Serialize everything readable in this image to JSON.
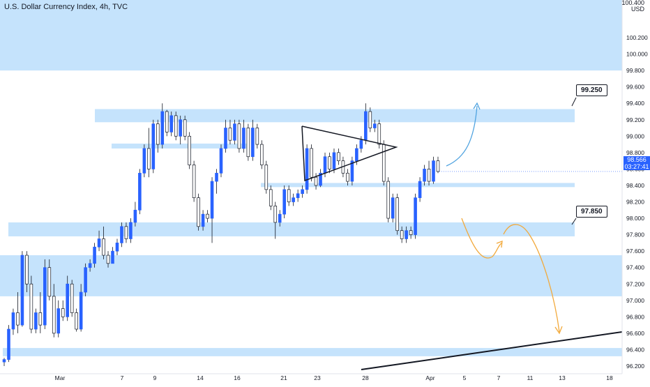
{
  "header": {
    "title": "U.S. Dollar Currency Index, 4h, TVC"
  },
  "price_axis": {
    "unit": "USD",
    "top_label": "100.400",
    "current_price": "98.566",
    "countdown": "03:27:41"
  },
  "callouts": {
    "upper": "99.250",
    "lower": "97.850"
  },
  "colors": {
    "zone": "#bbdefb",
    "up_candle": "#2962ff",
    "down_candle": "#ffffff",
    "arrow_up": "#4fa3e0",
    "arrow_down": "#f2a93b",
    "price_tag": "#2962ff"
  },
  "chart_data": {
    "type": "candlestick",
    "title": "U.S. Dollar Currency Index, 4h, TVC",
    "ylabel": "USD",
    "ylim": [
      96.2,
      100.4
    ],
    "y_ticks": [
      100.2,
      100.0,
      99.8,
      99.6,
      99.4,
      99.2,
      99.0,
      98.8,
      98.6,
      98.4,
      98.2,
      98.0,
      97.8,
      97.6,
      97.4,
      97.2,
      97.0,
      96.8,
      96.6,
      96.4,
      96.2
    ],
    "x_ticks": [
      "Mar",
      "7",
      "9",
      "14",
      "16",
      "21",
      "23",
      "28",
      "Apr",
      "5",
      "7",
      "11",
      "13",
      "18"
    ],
    "zones": [
      {
        "name": "supply-zone-top",
        "from": 99.8,
        "to": 100.4,
        "start": "Mar",
        "end": "right"
      },
      {
        "name": "resistance-99250",
        "from": 99.17,
        "to": 99.33,
        "start": "7",
        "end": "13"
      },
      {
        "name": "mid-98900",
        "from": 98.85,
        "to": 98.91,
        "start": "7",
        "end": "16"
      },
      {
        "name": "pivot-98400",
        "from": 98.38,
        "to": 98.43,
        "start": "21",
        "end": "13"
      },
      {
        "name": "support-97850",
        "from": 97.78,
        "to": 97.95,
        "start": "Mar",
        "end": "13"
      },
      {
        "name": "demand-zone",
        "from": 97.05,
        "to": 97.55,
        "start": "Mar",
        "end": "right"
      },
      {
        "name": "bottom-zone",
        "from": 96.32,
        "to": 96.42,
        "start": "Mar",
        "end": "right"
      }
    ],
    "annotations": [
      "99.250",
      "97.850",
      "symmetrical triangle",
      "bullish projection",
      "bearish projection",
      "rising trendline"
    ],
    "candles": [
      {
        "o": 96.25,
        "h": 96.3,
        "l": 96.2,
        "c": 96.28
      },
      {
        "o": 96.28,
        "h": 96.7,
        "l": 96.25,
        "c": 96.65
      },
      {
        "o": 96.65,
        "h": 96.9,
        "l": 96.58,
        "c": 96.85
      },
      {
        "o": 96.85,
        "h": 97.1,
        "l": 96.6,
        "c": 96.7
      },
      {
        "o": 96.7,
        "h": 97.6,
        "l": 96.68,
        "c": 97.55
      },
      {
        "o": 97.55,
        "h": 97.6,
        "l": 97.1,
        "c": 97.2
      },
      {
        "o": 97.2,
        "h": 97.3,
        "l": 96.6,
        "c": 96.65
      },
      {
        "o": 96.65,
        "h": 96.9,
        "l": 96.6,
        "c": 96.85
      },
      {
        "o": 96.85,
        "h": 97.1,
        "l": 96.6,
        "c": 96.7
      },
      {
        "o": 96.7,
        "h": 97.5,
        "l": 96.65,
        "c": 97.4
      },
      {
        "o": 97.4,
        "h": 97.5,
        "l": 97.0,
        "c": 97.05
      },
      {
        "o": 97.05,
        "h": 97.2,
        "l": 96.55,
        "c": 96.6
      },
      {
        "o": 96.6,
        "h": 97.0,
        "l": 96.55,
        "c": 96.9
      },
      {
        "o": 96.9,
        "h": 97.0,
        "l": 96.75,
        "c": 96.8
      },
      {
        "o": 96.8,
        "h": 97.3,
        "l": 96.75,
        "c": 97.2
      },
      {
        "o": 97.2,
        "h": 97.25,
        "l": 96.8,
        "c": 96.85
      },
      {
        "o": 96.85,
        "h": 96.9,
        "l": 96.62,
        "c": 96.65
      },
      {
        "o": 96.65,
        "h": 97.2,
        "l": 96.62,
        "c": 97.1
      },
      {
        "o": 97.1,
        "h": 97.45,
        "l": 97.05,
        "c": 97.4
      },
      {
        "o": 97.4,
        "h": 97.5,
        "l": 97.35,
        "c": 97.45
      },
      {
        "o": 97.45,
        "h": 97.7,
        "l": 97.4,
        "c": 97.65
      },
      {
        "o": 97.65,
        "h": 97.85,
        "l": 97.6,
        "c": 97.75
      },
      {
        "o": 97.75,
        "h": 97.9,
        "l": 97.5,
        "c": 97.55
      },
      {
        "o": 97.55,
        "h": 97.6,
        "l": 97.4,
        "c": 97.45
      },
      {
        "o": 97.45,
        "h": 97.65,
        "l": 97.45,
        "c": 97.6
      },
      {
        "o": 97.6,
        "h": 97.75,
        "l": 97.55,
        "c": 97.7
      },
      {
        "o": 97.7,
        "h": 97.95,
        "l": 97.65,
        "c": 97.9
      },
      {
        "o": 97.9,
        "h": 97.95,
        "l": 97.7,
        "c": 97.75
      },
      {
        "o": 97.75,
        "h": 98.0,
        "l": 97.7,
        "c": 97.95
      },
      {
        "o": 97.95,
        "h": 98.2,
        "l": 97.9,
        "c": 98.1
      },
      {
        "o": 98.1,
        "h": 98.6,
        "l": 98.05,
        "c": 98.55
      },
      {
        "o": 98.55,
        "h": 98.9,
        "l": 98.5,
        "c": 98.85
      },
      {
        "o": 98.85,
        "h": 99.1,
        "l": 98.5,
        "c": 98.6
      },
      {
        "o": 98.6,
        "h": 99.2,
        "l": 98.55,
        "c": 99.15
      },
      {
        "o": 99.15,
        "h": 99.2,
        "l": 98.8,
        "c": 98.9
      },
      {
        "o": 98.9,
        "h": 99.4,
        "l": 98.85,
        "c": 99.3
      },
      {
        "o": 99.3,
        "h": 99.32,
        "l": 99.0,
        "c": 99.05
      },
      {
        "o": 99.05,
        "h": 99.3,
        "l": 99.0,
        "c": 99.25
      },
      {
        "o": 99.25,
        "h": 99.3,
        "l": 98.95,
        "c": 99.0
      },
      {
        "o": 99.0,
        "h": 99.25,
        "l": 98.9,
        "c": 99.2
      },
      {
        "o": 99.2,
        "h": 99.25,
        "l": 98.95,
        "c": 99.0
      },
      {
        "o": 99.0,
        "h": 99.05,
        "l": 98.6,
        "c": 98.65
      },
      {
        "o": 98.65,
        "h": 98.7,
        "l": 98.2,
        "c": 98.25
      },
      {
        "o": 98.25,
        "h": 98.3,
        "l": 97.85,
        "c": 97.9
      },
      {
        "o": 97.9,
        "h": 98.1,
        "l": 97.85,
        "c": 98.05
      },
      {
        "o": 98.05,
        "h": 98.1,
        "l": 97.95,
        "c": 98.0
      },
      {
        "o": 98.0,
        "h": 98.5,
        "l": 97.7,
        "c": 98.45
      },
      {
        "o": 98.45,
        "h": 98.6,
        "l": 98.3,
        "c": 98.55
      },
      {
        "o": 98.55,
        "h": 98.9,
        "l": 98.5,
        "c": 98.85
      },
      {
        "o": 98.85,
        "h": 99.2,
        "l": 98.8,
        "c": 99.1
      },
      {
        "o": 99.1,
        "h": 99.2,
        "l": 98.9,
        "c": 98.95
      },
      {
        "o": 98.95,
        "h": 99.2,
        "l": 98.9,
        "c": 99.15
      },
      {
        "o": 99.15,
        "h": 99.2,
        "l": 98.8,
        "c": 98.85
      },
      {
        "o": 98.85,
        "h": 99.2,
        "l": 98.8,
        "c": 99.1
      },
      {
        "o": 99.1,
        "h": 99.15,
        "l": 98.7,
        "c": 98.75
      },
      {
        "o": 98.75,
        "h": 99.2,
        "l": 98.7,
        "c": 99.1
      },
      {
        "o": 99.1,
        "h": 99.15,
        "l": 98.85,
        "c": 98.9
      },
      {
        "o": 98.9,
        "h": 98.95,
        "l": 98.6,
        "c": 98.65
      },
      {
        "o": 98.65,
        "h": 98.7,
        "l": 98.3,
        "c": 98.35
      },
      {
        "o": 98.35,
        "h": 98.4,
        "l": 98.1,
        "c": 98.15
      },
      {
        "o": 98.15,
        "h": 98.2,
        "l": 97.75,
        "c": 97.95
      },
      {
        "o": 97.95,
        "h": 98.1,
        "l": 97.9,
        "c": 98.05
      },
      {
        "o": 98.05,
        "h": 98.4,
        "l": 98.0,
        "c": 98.35
      },
      {
        "o": 98.35,
        "h": 98.4,
        "l": 98.15,
        "c": 98.2
      },
      {
        "o": 98.2,
        "h": 98.3,
        "l": 98.15,
        "c": 98.25
      },
      {
        "o": 98.25,
        "h": 98.35,
        "l": 98.2,
        "c": 98.3
      },
      {
        "o": 98.3,
        "h": 98.4,
        "l": 98.25,
        "c": 98.35
      },
      {
        "o": 98.35,
        "h": 98.9,
        "l": 98.3,
        "c": 98.85
      },
      {
        "o": 98.85,
        "h": 98.9,
        "l": 98.45,
        "c": 98.5
      },
      {
        "o": 98.5,
        "h": 98.55,
        "l": 98.35,
        "c": 98.4
      },
      {
        "o": 98.4,
        "h": 98.6,
        "l": 98.38,
        "c": 98.55
      },
      {
        "o": 98.55,
        "h": 98.8,
        "l": 98.5,
        "c": 98.75
      },
      {
        "o": 98.75,
        "h": 98.8,
        "l": 98.55,
        "c": 98.6
      },
      {
        "o": 98.6,
        "h": 98.85,
        "l": 98.55,
        "c": 98.8
      },
      {
        "o": 98.8,
        "h": 98.85,
        "l": 98.65,
        "c": 98.7
      },
      {
        "o": 98.7,
        "h": 98.75,
        "l": 98.5,
        "c": 98.55
      },
      {
        "o": 98.55,
        "h": 98.6,
        "l": 98.4,
        "c": 98.45
      },
      {
        "o": 98.45,
        "h": 98.75,
        "l": 98.4,
        "c": 98.7
      },
      {
        "o": 98.7,
        "h": 98.9,
        "l": 98.65,
        "c": 98.85
      },
      {
        "o": 98.85,
        "h": 99.0,
        "l": 98.8,
        "c": 98.95
      },
      {
        "o": 98.95,
        "h": 99.4,
        "l": 98.9,
        "c": 99.3
      },
      {
        "o": 99.3,
        "h": 99.35,
        "l": 99.05,
        "c": 99.1
      },
      {
        "o": 99.1,
        "h": 99.2,
        "l": 99.05,
        "c": 99.15
      },
      {
        "o": 99.15,
        "h": 99.2,
        "l": 98.85,
        "c": 98.9
      },
      {
        "o": 98.9,
        "h": 98.95,
        "l": 98.4,
        "c": 98.45
      },
      {
        "o": 98.45,
        "h": 98.5,
        "l": 97.95,
        "c": 98.0
      },
      {
        "o": 98.0,
        "h": 98.3,
        "l": 97.95,
        "c": 98.25
      },
      {
        "o": 98.25,
        "h": 98.3,
        "l": 97.8,
        "c": 97.85
      },
      {
        "o": 97.85,
        "h": 97.9,
        "l": 97.7,
        "c": 97.75
      },
      {
        "o": 97.75,
        "h": 97.9,
        "l": 97.7,
        "c": 97.85
      },
      {
        "o": 97.85,
        "h": 97.9,
        "l": 97.75,
        "c": 97.8
      },
      {
        "o": 97.8,
        "h": 98.3,
        "l": 97.75,
        "c": 98.25
      },
      {
        "o": 98.25,
        "h": 98.5,
        "l": 98.2,
        "c": 98.45
      },
      {
        "o": 98.45,
        "h": 98.65,
        "l": 98.4,
        "c": 98.6
      },
      {
        "o": 98.6,
        "h": 98.7,
        "l": 98.4,
        "c": 98.45
      },
      {
        "o": 98.45,
        "h": 98.75,
        "l": 98.42,
        "c": 98.7
      },
      {
        "o": 98.7,
        "h": 98.75,
        "l": 98.55,
        "c": 98.57
      }
    ]
  }
}
